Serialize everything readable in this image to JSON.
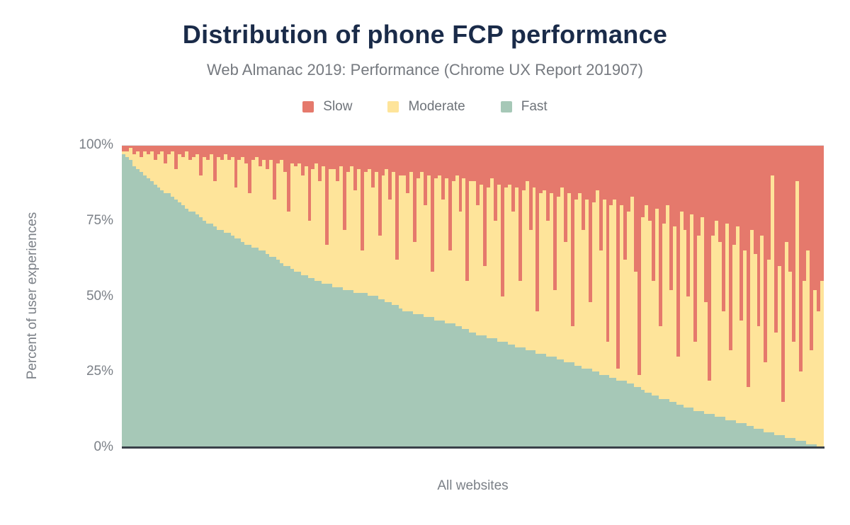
{
  "chart_data": {
    "type": "bar",
    "stacked": true,
    "stack_total": 100,
    "title": "Distribution of phone FCP performance",
    "subtitle": "Web Almanac 2019: Performance (Chrome UX Report 201907)",
    "xlabel": "All websites",
    "ylabel": "Percent of user experiences",
    "ylim": [
      0,
      100
    ],
    "y_ticks": [
      "0%",
      "25%",
      "50%",
      "75%",
      "100%"
    ],
    "grid": "top-line-only",
    "legend_position": "top",
    "axis_line_color": "#394049",
    "gridline_color": "#dcdee1",
    "series": [
      {
        "name": "Slow",
        "color": "#e5796c"
      },
      {
        "name": "Moderate",
        "color": "#fee49a"
      },
      {
        "name": "Fast",
        "color": "#a6c8b7"
      }
    ],
    "bars_format": "per website, left to right: [fast_pct, slow_pct]; moderate_pct = 100 - fast - slow",
    "bars": [
      [
        97,
        2
      ],
      [
        96,
        2
      ],
      [
        95,
        1
      ],
      [
        93,
        3
      ],
      [
        92,
        2
      ],
      [
        91,
        4
      ],
      [
        90,
        2
      ],
      [
        89,
        3
      ],
      [
        88,
        2
      ],
      [
        87,
        5
      ],
      [
        86,
        3
      ],
      [
        85,
        2
      ],
      [
        84,
        6
      ],
      [
        84,
        3
      ],
      [
        83,
        2
      ],
      [
        82,
        8
      ],
      [
        81,
        3
      ],
      [
        80,
        4
      ],
      [
        79,
        2
      ],
      [
        78,
        5
      ],
      [
        78,
        4
      ],
      [
        77,
        3
      ],
      [
        76,
        10
      ],
      [
        75,
        4
      ],
      [
        74,
        5
      ],
      [
        74,
        3
      ],
      [
        73,
        12
      ],
      [
        72,
        4
      ],
      [
        72,
        5
      ],
      [
        71,
        3
      ],
      [
        71,
        5
      ],
      [
        70,
        4
      ],
      [
        69,
        14
      ],
      [
        69,
        5
      ],
      [
        68,
        4
      ],
      [
        67,
        6
      ],
      [
        67,
        16
      ],
      [
        66,
        5
      ],
      [
        66,
        4
      ],
      [
        65,
        7
      ],
      [
        65,
        5
      ],
      [
        64,
        8
      ],
      [
        63,
        5
      ],
      [
        63,
        18
      ],
      [
        62,
        6
      ],
      [
        61,
        5
      ],
      [
        60,
        9
      ],
      [
        60,
        22
      ],
      [
        59,
        6
      ],
      [
        58,
        7
      ],
      [
        58,
        6
      ],
      [
        57,
        10
      ],
      [
        57,
        7
      ],
      [
        56,
        25
      ],
      [
        56,
        8
      ],
      [
        55,
        6
      ],
      [
        55,
        12
      ],
      [
        54,
        7
      ],
      [
        54,
        33
      ],
      [
        54,
        8
      ],
      [
        53,
        8
      ],
      [
        53,
        12
      ],
      [
        53,
        7
      ],
      [
        52,
        28
      ],
      [
        52,
        9
      ],
      [
        52,
        7
      ],
      [
        51,
        15
      ],
      [
        51,
        8
      ],
      [
        51,
        35
      ],
      [
        51,
        9
      ],
      [
        50,
        8
      ],
      [
        50,
        14
      ],
      [
        50,
        9
      ],
      [
        49,
        30
      ],
      [
        49,
        10
      ],
      [
        48,
        8
      ],
      [
        48,
        18
      ],
      [
        47,
        9
      ],
      [
        47,
        38
      ],
      [
        46,
        10
      ],
      [
        45,
        10
      ],
      [
        45,
        16
      ],
      [
        45,
        9
      ],
      [
        44,
        32
      ],
      [
        44,
        11
      ],
      [
        44,
        9
      ],
      [
        43,
        20
      ],
      [
        43,
        10
      ],
      [
        43,
        42
      ],
      [
        42,
        11
      ],
      [
        42,
        10
      ],
      [
        42,
        18
      ],
      [
        41,
        11
      ],
      [
        41,
        35
      ],
      [
        41,
        12
      ],
      [
        40,
        10
      ],
      [
        40,
        22
      ],
      [
        39,
        11
      ],
      [
        39,
        45
      ],
      [
        38,
        12
      ],
      [
        38,
        12
      ],
      [
        37,
        20
      ],
      [
        37,
        13
      ],
      [
        37,
        40
      ],
      [
        36,
        14
      ],
      [
        36,
        11
      ],
      [
        36,
        25
      ],
      [
        35,
        13
      ],
      [
        35,
        50
      ],
      [
        35,
        14
      ],
      [
        34,
        13
      ],
      [
        34,
        22
      ],
      [
        33,
        14
      ],
      [
        33,
        45
      ],
      [
        33,
        15
      ],
      [
        32,
        12
      ],
      [
        32,
        28
      ],
      [
        32,
        14
      ],
      [
        31,
        55
      ],
      [
        31,
        16
      ],
      [
        31,
        15
      ],
      [
        30,
        25
      ],
      [
        30,
        16
      ],
      [
        30,
        48
      ],
      [
        29,
        17
      ],
      [
        29,
        14
      ],
      [
        28,
        32
      ],
      [
        28,
        16
      ],
      [
        28,
        60
      ],
      [
        27,
        18
      ],
      [
        27,
        16
      ],
      [
        26,
        28
      ],
      [
        26,
        18
      ],
      [
        26,
        52
      ],
      [
        25,
        19
      ],
      [
        25,
        15
      ],
      [
        24,
        35
      ],
      [
        24,
        18
      ],
      [
        24,
        65
      ],
      [
        23,
        20
      ],
      [
        23,
        18
      ],
      [
        22,
        74
      ],
      [
        22,
        20
      ],
      [
        22,
        38
      ],
      [
        21,
        22
      ],
      [
        21,
        17
      ],
      [
        20,
        42
      ],
      [
        20,
        76
      ],
      [
        19,
        24
      ],
      [
        18,
        20
      ],
      [
        18,
        25
      ],
      [
        17,
        45
      ],
      [
        17,
        21
      ],
      [
        16,
        60
      ],
      [
        16,
        26
      ],
      [
        16,
        20
      ],
      [
        15,
        48
      ],
      [
        15,
        27
      ],
      [
        14,
        70
      ],
      [
        14,
        22
      ],
      [
        13,
        28
      ],
      [
        13,
        50
      ],
      [
        13,
        23
      ],
      [
        12,
        65
      ],
      [
        12,
        30
      ],
      [
        12,
        24
      ],
      [
        11,
        52
      ],
      [
        11,
        78
      ],
      [
        11,
        30
      ],
      [
        10,
        25
      ],
      [
        10,
        32
      ],
      [
        10,
        55
      ],
      [
        9,
        26
      ],
      [
        9,
        68
      ],
      [
        9,
        33
      ],
      [
        8,
        27
      ],
      [
        8,
        58
      ],
      [
        8,
        35
      ],
      [
        7,
        80
      ],
      [
        7,
        28
      ],
      [
        6,
        36
      ],
      [
        6,
        60
      ],
      [
        6,
        30
      ],
      [
        5,
        72
      ],
      [
        5,
        38
      ],
      [
        5,
        10
      ],
      [
        4,
        62
      ],
      [
        4,
        40
      ],
      [
        4,
        85
      ],
      [
        3,
        32
      ],
      [
        3,
        42
      ],
      [
        3,
        65
      ],
      [
        2,
        12
      ],
      [
        2,
        75
      ],
      [
        2,
        45
      ],
      [
        1,
        35
      ],
      [
        1,
        68
      ],
      [
        1,
        48
      ],
      [
        0,
        55
      ],
      [
        0,
        45
      ]
    ],
    "text_colors": {
      "title": "#1a2b49",
      "subtitle": "#75797f",
      "legend": "#6e7379",
      "axis_labels": "#7b8087"
    }
  }
}
